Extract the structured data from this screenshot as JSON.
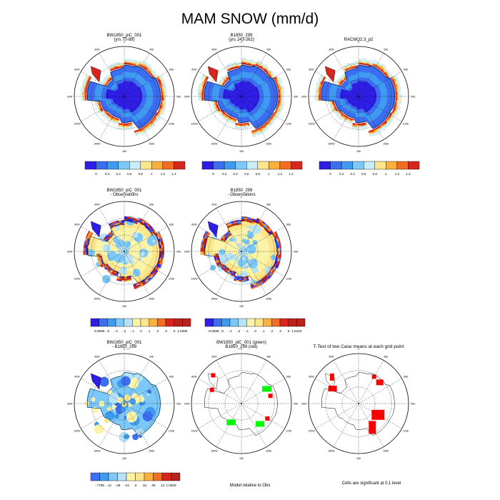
{
  "title": "MAM SNOW (mm/d)",
  "colors": {
    "abs": [
      "#2e1ee6",
      "#3b6ef0",
      "#3f9bf0",
      "#7cc8f8",
      "#c8ecf8",
      "#fde68a",
      "#fbb03b",
      "#f26d21",
      "#d7261e",
      "#b8211c"
    ],
    "diff": [
      "#2e1ee6",
      "#3b6ef0",
      "#3f9bf0",
      "#7cc8f8",
      "#b7e3f8",
      "#fbf3a8",
      "#fde68a",
      "#fbb03b",
      "#f26d21",
      "#d7261e",
      "#b8211c"
    ],
    "ttest_mark": "#ff0000",
    "model1_mark": "#00ff00",
    "model2_mark": "#ff0000"
  },
  "longitude_labels": [
    "0",
    "30E",
    "60E",
    "90E",
    "120E",
    "150E",
    "180",
    "150W",
    "120W",
    "90W",
    "60W",
    "30W"
  ],
  "panels": [
    {
      "title1": "BW1850_piC_001",
      "title2": "(yrs 70-89)",
      "kind": "abs"
    },
    {
      "title1": "B1850_299",
      "title2": "(yrs 243-262)",
      "kind": "abs"
    },
    {
      "title1": "RACMO2.3_p2",
      "title2": "",
      "kind": "abs"
    },
    {
      "title1": "BW1850_piC_001",
      "title2": "- Observations",
      "kind": "diff"
    },
    {
      "title1": "B1850_299",
      "title2": "- Observations",
      "kind": "diff"
    },
    {
      "title1": "BW1850_piC_001",
      "title2": "- B1850_299",
      "kind": "diff2"
    },
    {
      "title1": "BW1850_piC_001 (green)",
      "title2": "B1850_299 (red)",
      "kind": "comp"
    },
    {
      "title1": "T-Test of two Case means at each grid point",
      "title2": "",
      "kind": "ttest"
    }
  ],
  "labelbars": [
    {
      "labels": [
        "0",
        "0.2",
        "0.4",
        "0.6",
        "0.8",
        "1",
        "1.2",
        "1.4"
      ]
    },
    {
      "labels": [
        "0",
        "0.2",
        "0.4",
        "0.6",
        "0.8",
        "1",
        "1.2",
        "1.4"
      ]
    },
    {
      "labels": [
        "0",
        "0.2",
        "0.4",
        "0.6",
        "0.8",
        "1",
        "1.2",
        "1.4"
      ]
    },
    {
      "labels": [
        "-6.9095",
        "-.5",
        "-.3",
        "-.2",
        "-.1",
        ".0",
        ".1",
        ".2",
        ".3",
        ".5",
        "1.6396"
      ]
    },
    {
      "labels": [
        "-6.5698",
        "-.5",
        "-.3",
        "-.2",
        "-.1",
        ".0",
        ".1",
        ".2",
        ".3",
        ".5",
        "1.6103"
      ]
    },
    {
      "labels": [
        "-.7785",
        "-.12",
        "-.08",
        "-.04",
        ".0",
        ".04",
        ".08",
        ".12",
        "1.0628"
      ]
    }
  ],
  "notes": {
    "model_relative": "Model relative to Obs",
    "significance": "Cells are significant at 0.1 level"
  },
  "chart_data": {
    "type": "heatmap",
    "title": "MAM SNOW (mm/d)",
    "units": "mm/d",
    "projection": "south-polar-stereographic",
    "panels": [
      {
        "name": "BW1850_piC_001 (yrs 70-89)",
        "field": "mean",
        "levels": [
          0,
          0.2,
          0.4,
          0.6,
          0.8,
          1,
          1.2,
          1.4
        ]
      },
      {
        "name": "B1850_299 (yrs 243-262)",
        "field": "mean",
        "levels": [
          0,
          0.2,
          0.4,
          0.6,
          0.8,
          1,
          1.2,
          1.4
        ]
      },
      {
        "name": "RACMO2.3_p2",
        "field": "mean",
        "levels": [
          0,
          0.2,
          0.4,
          0.6,
          0.8,
          1,
          1.2,
          1.4
        ]
      },
      {
        "name": "BW1850_piC_001 - Observations",
        "field": "difference",
        "min": -6.9095,
        "max": 1.6396,
        "levels": [
          -0.5,
          -0.3,
          -0.2,
          -0.1,
          0.0,
          0.1,
          0.2,
          0.3,
          0.5
        ]
      },
      {
        "name": "B1850_299 - Observations",
        "field": "difference",
        "min": -6.5698,
        "max": 1.6103,
        "levels": [
          -0.5,
          -0.3,
          -0.2,
          -0.1,
          0.0,
          0.1,
          0.2,
          0.3,
          0.5
        ]
      },
      {
        "name": "BW1850_piC_001 - B1850_299",
        "field": "difference",
        "min": -0.7785,
        "max": 1.0628,
        "levels": [
          -0.12,
          -0.08,
          -0.04,
          0.0,
          0.04,
          0.08,
          0.12
        ]
      },
      {
        "name": "BW1850_piC_001 (green) / B1850_299 (red)",
        "field": "model-relative-to-obs"
      },
      {
        "name": "T-Test of two Case means at each grid point",
        "field": "significance",
        "level": 0.1
      }
    ]
  }
}
